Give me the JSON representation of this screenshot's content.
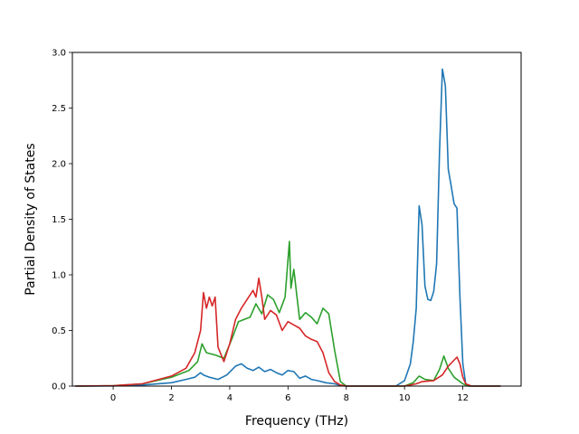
{
  "chart_data": {
    "type": "line",
    "xlabel": "Frequency (THz)",
    "ylabel": "Partial Density of States",
    "xlim": [
      -1.4,
      14.0
    ],
    "ylim": [
      0.0,
      3.0
    ],
    "xticks": [
      0,
      2,
      4,
      6,
      8,
      10,
      12
    ],
    "xtick_labels": [
      "0",
      "2",
      "4",
      "6",
      "8",
      "10",
      "12"
    ],
    "yticks": [
      0.0,
      0.5,
      1.0,
      1.5,
      2.0,
      2.5,
      3.0
    ],
    "ytick_labels": [
      "0.0",
      "0.5",
      "1.0",
      "1.5",
      "2.0",
      "2.5",
      "3.0"
    ],
    "grid": false,
    "series": [
      {
        "color": "#1f77b4",
        "x": [
          -1.3,
          0,
          1,
          2,
          2.5,
          2.8,
          3.0,
          3.1,
          3.3,
          3.6,
          3.9,
          4.2,
          4.4,
          4.6,
          4.8,
          5.0,
          5.2,
          5.4,
          5.6,
          5.8,
          6.0,
          6.2,
          6.4,
          6.6,
          6.8,
          7.0,
          7.3,
          7.6,
          7.8,
          8.0,
          9.0,
          9.7,
          10.0,
          10.2,
          10.3,
          10.4,
          10.5,
          10.6,
          10.7,
          10.8,
          10.9,
          11.0,
          11.1,
          11.2,
          11.3,
          11.4,
          11.5,
          11.6,
          11.7,
          11.8,
          11.9,
          12.0,
          12.1,
          12.2,
          12.5,
          13.3
        ],
        "y": [
          0.0,
          0.002,
          0.01,
          0.03,
          0.06,
          0.08,
          0.12,
          0.1,
          0.08,
          0.06,
          0.1,
          0.18,
          0.2,
          0.16,
          0.14,
          0.17,
          0.13,
          0.15,
          0.12,
          0.1,
          0.14,
          0.13,
          0.07,
          0.09,
          0.06,
          0.05,
          0.03,
          0.02,
          0.005,
          0.0,
          0.0,
          0.0,
          0.05,
          0.2,
          0.4,
          0.7,
          1.62,
          1.45,
          0.9,
          0.78,
          0.77,
          0.85,
          1.1,
          2.1,
          2.85,
          2.7,
          1.95,
          1.8,
          1.64,
          1.6,
          0.8,
          0.2,
          0.02,
          0.0,
          0.0,
          0.0
        ]
      },
      {
        "color": "#2ca02c",
        "x": [
          -1.3,
          0,
          1,
          2,
          2.6,
          2.9,
          3.05,
          3.2,
          3.5,
          3.8,
          4.1,
          4.3,
          4.5,
          4.7,
          4.9,
          5.1,
          5.3,
          5.5,
          5.7,
          5.9,
          6.05,
          6.1,
          6.2,
          6.3,
          6.4,
          6.6,
          6.8,
          7.0,
          7.2,
          7.4,
          7.6,
          7.8,
          8.0,
          9.0,
          10.0,
          10.3,
          10.5,
          10.7,
          11.0,
          11.2,
          11.35,
          11.5,
          11.7,
          12.0,
          12.2,
          13.3
        ],
        "y": [
          0.0,
          0.003,
          0.02,
          0.08,
          0.14,
          0.22,
          0.38,
          0.3,
          0.28,
          0.25,
          0.44,
          0.58,
          0.6,
          0.62,
          0.74,
          0.65,
          0.82,
          0.78,
          0.66,
          0.8,
          1.3,
          0.88,
          1.05,
          0.82,
          0.6,
          0.66,
          0.62,
          0.56,
          0.7,
          0.65,
          0.32,
          0.04,
          0.0,
          0.0,
          0.0,
          0.03,
          0.09,
          0.06,
          0.05,
          0.15,
          0.27,
          0.16,
          0.08,
          0.02,
          0.0,
          0.0
        ]
      },
      {
        "color": "#d62728",
        "x": [
          -1.3,
          0,
          1,
          2,
          2.5,
          2.8,
          3.0,
          3.1,
          3.2,
          3.3,
          3.4,
          3.5,
          3.6,
          3.8,
          4.0,
          4.2,
          4.4,
          4.6,
          4.8,
          4.9,
          5.0,
          5.1,
          5.2,
          5.4,
          5.6,
          5.8,
          6.0,
          6.2,
          6.4,
          6.6,
          6.8,
          7.0,
          7.2,
          7.4,
          7.6,
          7.8,
          8.0,
          9.0,
          10.0,
          10.4,
          10.6,
          11.0,
          11.3,
          11.5,
          11.8,
          11.9,
          12.0,
          12.1,
          12.3,
          13.3
        ],
        "y": [
          0.0,
          0.003,
          0.02,
          0.09,
          0.16,
          0.3,
          0.5,
          0.84,
          0.7,
          0.8,
          0.72,
          0.8,
          0.35,
          0.22,
          0.38,
          0.6,
          0.7,
          0.78,
          0.86,
          0.8,
          0.97,
          0.8,
          0.6,
          0.68,
          0.64,
          0.5,
          0.58,
          0.55,
          0.52,
          0.45,
          0.42,
          0.4,
          0.3,
          0.12,
          0.04,
          0.01,
          0.0,
          0.0,
          0.0,
          0.02,
          0.04,
          0.05,
          0.1,
          0.18,
          0.26,
          0.2,
          0.08,
          0.02,
          0.0,
          0.0
        ]
      }
    ]
  }
}
